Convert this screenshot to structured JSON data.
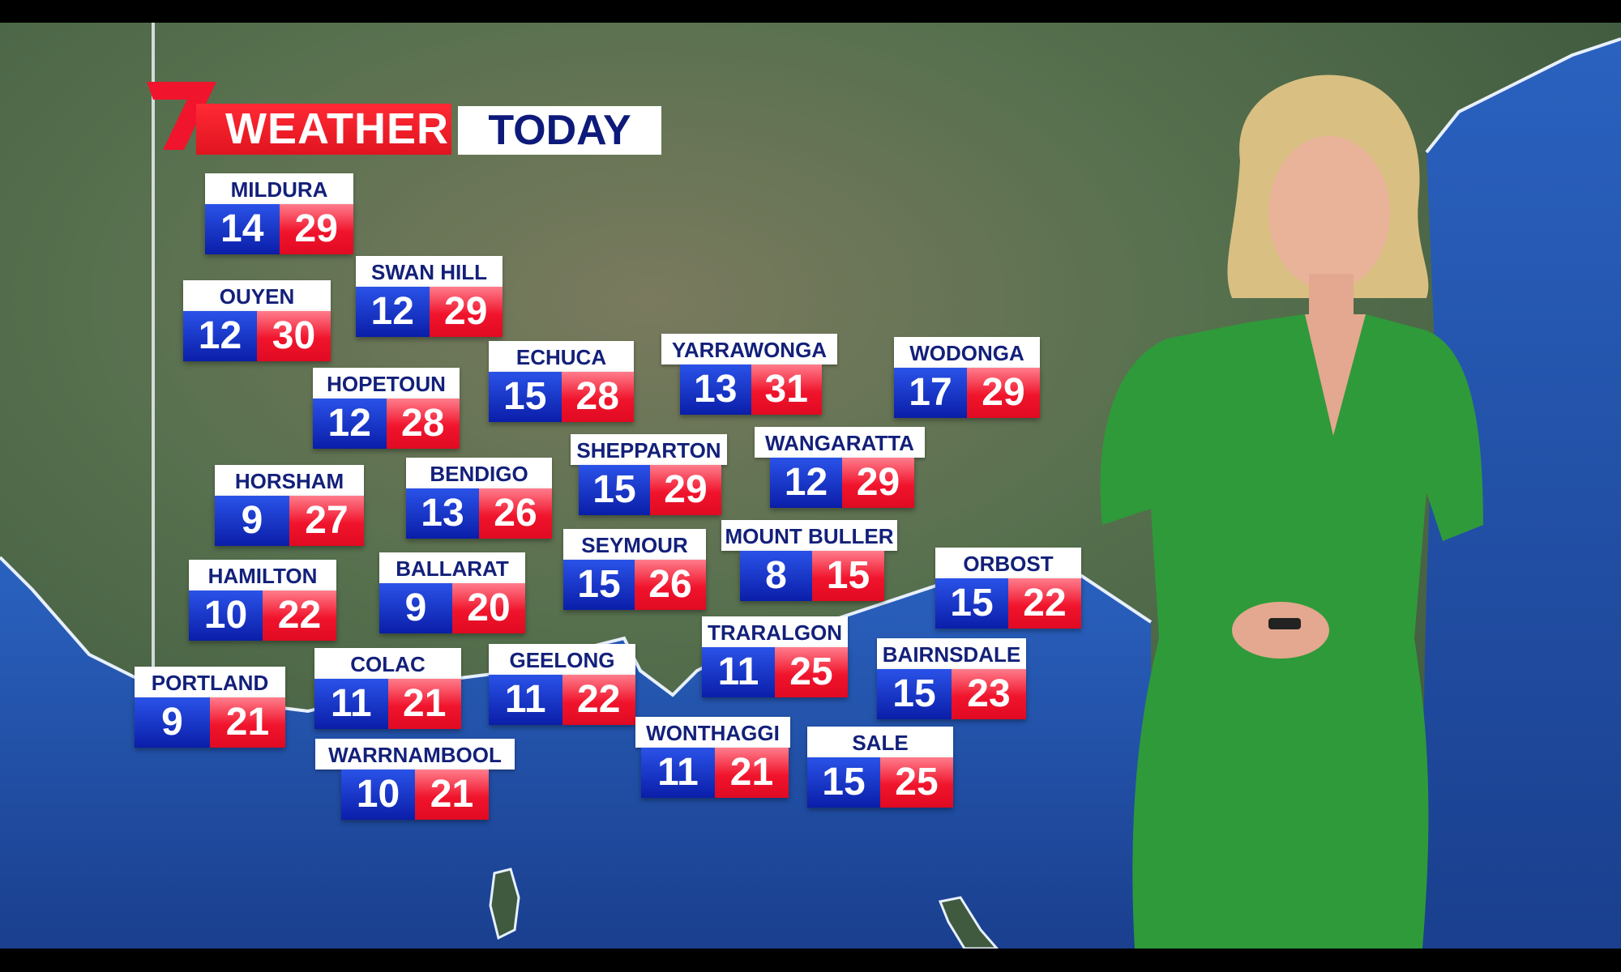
{
  "header": {
    "brand_logo_text": "7",
    "weather_label": "WEATHER",
    "period_label": "TODAY"
  },
  "colors": {
    "min_temp": "#0a1ea8",
    "max_temp": "#f0142c",
    "label_text": "#13207a",
    "ocean": "#1f4fa8",
    "dress": "#2f9a3a"
  },
  "stations": [
    {
      "name": "MILDURA",
      "min": "14",
      "max": "29"
    },
    {
      "name": "SWAN HILL",
      "min": "12",
      "max": "29"
    },
    {
      "name": "OUYEN",
      "min": "12",
      "max": "30"
    },
    {
      "name": "ECHUCA",
      "min": "15",
      "max": "28"
    },
    {
      "name": "YARRAWONGA",
      "min": "13",
      "max": "31"
    },
    {
      "name": "WODONGA",
      "min": "17",
      "max": "29"
    },
    {
      "name": "HOPETOUN",
      "min": "12",
      "max": "28"
    },
    {
      "name": "SHEPPARTON",
      "min": "15",
      "max": "29"
    },
    {
      "name": "WANGARATTA",
      "min": "12",
      "max": "29"
    },
    {
      "name": "HORSHAM",
      "min": "9",
      "max": "27"
    },
    {
      "name": "BENDIGO",
      "min": "13",
      "max": "26"
    },
    {
      "name": "SEYMOUR",
      "min": "15",
      "max": "26"
    },
    {
      "name": "MOUNT BULLER",
      "min": "8",
      "max": "15"
    },
    {
      "name": "ORBOST",
      "min": "15",
      "max": "22"
    },
    {
      "name": "HAMILTON",
      "min": "10",
      "max": "22"
    },
    {
      "name": "BALLARAT",
      "min": "9",
      "max": "20"
    },
    {
      "name": "TRARALGON",
      "min": "11",
      "max": "25"
    },
    {
      "name": "BAIRNSDALE",
      "min": "15",
      "max": "23"
    },
    {
      "name": "PORTLAND",
      "min": "9",
      "max": "21"
    },
    {
      "name": "COLAC",
      "min": "11",
      "max": "21"
    },
    {
      "name": "GEELONG",
      "min": "11",
      "max": "22"
    },
    {
      "name": "WONTHAGGI",
      "min": "11",
      "max": "21"
    },
    {
      "name": "SALE",
      "min": "15",
      "max": "25"
    },
    {
      "name": "WARRNAMBOOL",
      "min": "10",
      "max": "21"
    }
  ]
}
